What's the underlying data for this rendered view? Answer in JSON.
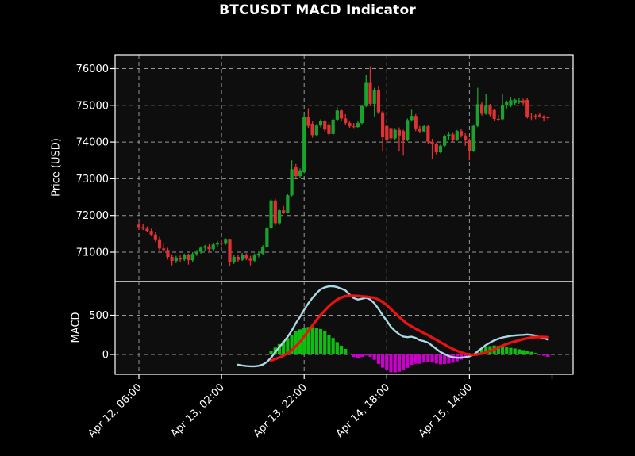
{
  "title": "BTCUSDT MACD Indicator",
  "price_panel": {
    "axis_label": "Price (USD)"
  },
  "macd_panel": {
    "axis_label": "MACD"
  },
  "colors": {
    "figure_background": "#000000",
    "plot_background": "#0e0e0e",
    "grid": "#b0b0b0",
    "spine": "#ffffff",
    "text": "#ffffff",
    "candle_up": "#1aa32c",
    "candle_down": "#e03232",
    "histogram_up": "#0fbf0f",
    "histogram_down": "#cc00cc",
    "macd_line": "#add8e6",
    "signal_line": "#ee1111"
  },
  "chart_data": {
    "type": "candlestick+macd",
    "symbol": "BTCUSDT",
    "interval_hours": 1,
    "grid": "dashed",
    "price_ylim": [
      70200,
      76380
    ],
    "price_yticks": [
      76000,
      75000,
      74000,
      73000,
      72000,
      71000
    ],
    "macd_ylim": [
      -253,
      929
    ],
    "macd_yticks": [
      500,
      0
    ],
    "x_ticks": [
      {
        "index": 0,
        "label": "Apr 12, 06:00"
      },
      {
        "index": 20,
        "label": "Apr 13, 02:00"
      },
      {
        "index": 40,
        "label": "Apr 13, 22:00"
      },
      {
        "index": 60,
        "label": "Apr 14, 18:00"
      },
      {
        "index": 80,
        "label": "Apr 15, 14:00"
      },
      {
        "index": 100,
        "label": ""
      }
    ],
    "candles_ohlc": [
      [
        71750,
        71820,
        71620,
        71680
      ],
      [
        71680,
        71760,
        71600,
        71640
      ],
      [
        71640,
        71700,
        71540,
        71580
      ],
      [
        71580,
        71640,
        71440,
        71480
      ],
      [
        71480,
        71540,
        71280,
        71330
      ],
      [
        71330,
        71420,
        71040,
        71100
      ],
      [
        71100,
        71230,
        71000,
        71060
      ],
      [
        71060,
        71120,
        70800,
        70870
      ],
      [
        70870,
        70940,
        70640,
        70760
      ],
      [
        70760,
        70900,
        70700,
        70850
      ],
      [
        70850,
        70910,
        70740,
        70800
      ],
      [
        70800,
        70960,
        70760,
        70920
      ],
      [
        70920,
        70960,
        70660,
        70780
      ],
      [
        70780,
        71000,
        70740,
        70950
      ],
      [
        70950,
        71060,
        70900,
        71010
      ],
      [
        71010,
        71160,
        70960,
        71120
      ],
      [
        71120,
        71200,
        71040,
        71160
      ],
      [
        71160,
        71220,
        71020,
        71080
      ],
      [
        71080,
        71260,
        71050,
        71210
      ],
      [
        71210,
        71310,
        71150,
        71260
      ],
      [
        71260,
        71330,
        71170,
        71230
      ],
      [
        71230,
        71380,
        71200,
        71340
      ],
      [
        71340,
        71360,
        70620,
        70730
      ],
      [
        70730,
        70920,
        70680,
        70870
      ],
      [
        70870,
        70930,
        70740,
        70790
      ],
      [
        70790,
        70980,
        70760,
        70930
      ],
      [
        70930,
        70970,
        70780,
        70840
      ],
      [
        70840,
        70900,
        70640,
        70770
      ],
      [
        70770,
        70960,
        70740,
        70910
      ],
      [
        70910,
        71010,
        70860,
        70960
      ],
      [
        70960,
        71190,
        70920,
        71150
      ],
      [
        71150,
        71700,
        71110,
        71660
      ],
      [
        71660,
        72450,
        71640,
        72410
      ],
      [
        72410,
        72460,
        71720,
        71790
      ],
      [
        71790,
        72180,
        71740,
        72140
      ],
      [
        72140,
        72260,
        72040,
        72080
      ],
      [
        72080,
        72600,
        72050,
        72550
      ],
      [
        72550,
        73500,
        72520,
        73260
      ],
      [
        73310,
        73400,
        73020,
        73070
      ],
      [
        73070,
        73280,
        73010,
        73230
      ],
      [
        73180,
        74750,
        73150,
        74680
      ],
      [
        74680,
        74920,
        74380,
        74440
      ],
      [
        74500,
        74560,
        74120,
        74190
      ],
      [
        74190,
        74490,
        74150,
        74450
      ],
      [
        74450,
        74620,
        74400,
        74570
      ],
      [
        74570,
        74600,
        74290,
        74340
      ],
      [
        74480,
        74530,
        74180,
        74220
      ],
      [
        74220,
        74650,
        74190,
        74610
      ],
      [
        74610,
        74950,
        74580,
        74860
      ],
      [
        74860,
        74900,
        74580,
        74640
      ],
      [
        74640,
        74760,
        74470,
        74520
      ],
      [
        74520,
        74580,
        74380,
        74430
      ],
      [
        74430,
        74520,
        74360,
        74410
      ],
      [
        74410,
        74560,
        74380,
        74520
      ],
      [
        74520,
        75020,
        74490,
        74980
      ],
      [
        74980,
        75820,
        74950,
        75610
      ],
      [
        75610,
        76060,
        74980,
        75040
      ],
      [
        75040,
        75480,
        74700,
        75420
      ],
      [
        75420,
        75520,
        74760,
        74810
      ],
      [
        74810,
        74850,
        73740,
        74130
      ],
      [
        74440,
        74480,
        73980,
        74060
      ],
      [
        74360,
        74400,
        74040,
        74100
      ],
      [
        74100,
        74360,
        74060,
        74330
      ],
      [
        74330,
        74400,
        73740,
        74180
      ],
      [
        74300,
        74340,
        73630,
        74050
      ],
      [
        74050,
        74640,
        74020,
        74600
      ],
      [
        74600,
        74880,
        74560,
        74710
      ],
      [
        74710,
        74760,
        74300,
        74350
      ],
      [
        74350,
        74440,
        74240,
        74290
      ],
      [
        74290,
        74460,
        74260,
        74430
      ],
      [
        74430,
        74460,
        73960,
        74010
      ],
      [
        74010,
        74090,
        73550,
        73940
      ],
      [
        73940,
        73990,
        73660,
        73720
      ],
      [
        73720,
        73930,
        73690,
        73900
      ],
      [
        73900,
        74200,
        73870,
        74170
      ],
      [
        74170,
        74260,
        74060,
        74210
      ],
      [
        74210,
        74250,
        74000,
        74060
      ],
      [
        74060,
        74330,
        74030,
        74300
      ],
      [
        74300,
        74350,
        74120,
        74180
      ],
      [
        74180,
        74240,
        73900,
        74060
      ],
      [
        74060,
        74100,
        73500,
        73760
      ],
      [
        73760,
        74470,
        73730,
        74440
      ],
      [
        74440,
        75480,
        74410,
        75030
      ],
      [
        75030,
        75080,
        74720,
        74770
      ],
      [
        74770,
        75300,
        74740,
        74990
      ],
      [
        74990,
        75040,
        74700,
        74750
      ],
      [
        74870,
        74910,
        74580,
        74630
      ],
      [
        74630,
        74740,
        74560,
        74620
      ],
      [
        74620,
        75310,
        74600,
        74990
      ],
      [
        74990,
        75130,
        74900,
        75090
      ],
      [
        74990,
        75230,
        74950,
        75140
      ],
      [
        75060,
        75180,
        75000,
        75150
      ],
      [
        75100,
        75200,
        75040,
        75130
      ],
      [
        75130,
        75180,
        75020,
        75070
      ],
      [
        75150,
        75190,
        74640,
        74690
      ],
      [
        74690,
        74780,
        74600,
        74670
      ],
      [
        74720,
        74760,
        74620,
        74710
      ],
      [
        74740,
        74780,
        74660,
        74700
      ],
      [
        74700,
        74730,
        74560,
        74650
      ],
      [
        74680,
        74700,
        74600,
        74650
      ]
    ],
    "macd_line": {
      "start_index": 24,
      "values": [
        -130,
        -140,
        -147,
        -150,
        -150,
        -144,
        -128,
        -95,
        -40,
        30,
        95,
        155,
        225,
        305,
        400,
        480,
        570,
        650,
        720,
        780,
        830,
        855,
        868,
        870,
        858,
        838,
        815,
        762,
        718,
        700,
        710,
        722,
        700,
        652,
        580,
        500,
        428,
        352,
        300,
        258,
        228,
        220,
        226,
        210,
        182,
        170,
        150,
        110,
        70,
        30,
        5,
        -20,
        -35,
        -42,
        -40,
        -34,
        -24,
        -4,
        40,
        80,
        120,
        152,
        180,
        200,
        216,
        226,
        236,
        242,
        246,
        250,
        255,
        250,
        240,
        220,
        206,
        190
      ]
    },
    "signal_line": {
      "start_index": 32,
      "values": [
        -80,
        -58,
        -38,
        -14,
        16,
        56,
        106,
        160,
        230,
        300,
        370,
        440,
        505,
        560,
        615,
        660,
        700,
        726,
        744,
        750,
        750,
        746,
        740,
        736,
        730,
        720,
        700,
        668,
        628,
        578,
        528,
        478,
        430,
        390,
        358,
        328,
        300,
        272,
        246,
        214,
        186,
        156,
        126,
        96,
        70,
        46,
        26,
        10,
        0,
        -4,
        0,
        12,
        26,
        46,
        66,
        90,
        112,
        132,
        152,
        166,
        180,
        194,
        206,
        216,
        221,
        223,
        222,
        220
      ]
    },
    "histogram": {
      "start_index": 32,
      "values": [
        40,
        88,
        133,
        169,
        209,
        249,
        294,
        320,
        340,
        350,
        350,
        340,
        325,
        295,
        253,
        210,
        158,
        112,
        71,
        12,
        -32,
        -46,
        -30,
        -14,
        -30,
        -68,
        -120,
        -168,
        -200,
        -226,
        -228,
        -220,
        -202,
        -170,
        -132,
        -118,
        -118,
        -102,
        -96,
        -104,
        -116,
        -126,
        -121,
        -116,
        -105,
        -88,
        -66,
        -44,
        -24,
        0,
        40,
        68,
        94,
        106,
        114,
        110,
        104,
        94,
        84,
        76,
        66,
        56,
        49,
        34,
        19,
        -3,
        -16,
        -30
      ]
    }
  }
}
